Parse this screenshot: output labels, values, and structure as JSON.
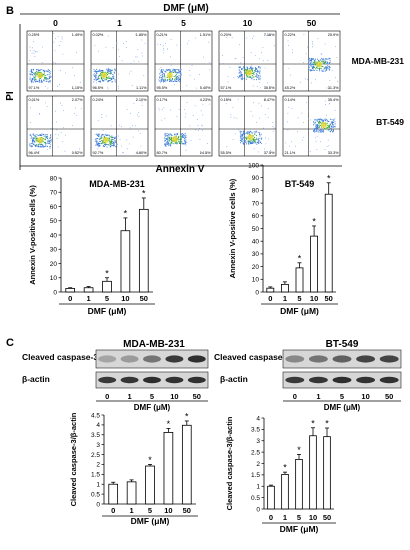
{
  "panel_b": {
    "letter": "B",
    "top_label": "DMF (μM)",
    "concentrations": [
      "0",
      "1",
      "5",
      "10",
      "50"
    ],
    "y_axis_label": "PI",
    "x_axis_label": "Annexin V",
    "rows": [
      {
        "cell_line": "MDA-MB-231",
        "plots": [
          {
            "ul": "0.25%",
            "ur": "1.49%",
            "ll": "97.1%",
            "lr": "1.15%"
          },
          {
            "ul": "0.02%",
            "ur": "1.85%",
            "ll": "96.5%",
            "lr": "1.11%"
          },
          {
            "ul": "0.21%",
            "ur": "1.51%",
            "ll": "95.5%",
            "lr": "5.40%"
          },
          {
            "ul": "0.20%",
            "ur": "7.16%",
            "ll": "57.1%",
            "lr": "35.6%"
          },
          {
            "ul": "0.22%",
            "ur": "25.9%",
            "ll": "43.2%",
            "lr": "31.3%"
          }
        ]
      },
      {
        "cell_line": "BT-549",
        "plots": [
          {
            "ul": "0.01%",
            "ur": "2.07%",
            "ll": "96.4%",
            "lr": "0.52%"
          },
          {
            "ul": "0.24%",
            "ur": "2.10%",
            "ll": "92.7%",
            "lr": "4.90%"
          },
          {
            "ul": "0.17%",
            "ur": "4.23%",
            "ll": "80.7%",
            "lr": "14.5%"
          },
          {
            "ul": "0.15%",
            "ur": "8.47%",
            "ll": "55.5%",
            "lr": "37.5%"
          },
          {
            "ul": "0.14%",
            "ur": "35.4%",
            "ll": "21.1%",
            "lr": "33.3%"
          }
        ]
      }
    ]
  },
  "panel_c": {
    "letter": "C",
    "blot_label_top": "Cleaved caspase-3",
    "blot_label_bottom": "β-actin"
  },
  "chart_data": [
    {
      "type": "bar",
      "title": "MDA-MB-231",
      "xlabel": "DMF (μM)",
      "ylabel": "Annexin V-positive cells (%)",
      "categories": [
        "0",
        "1",
        "5",
        "10",
        "50"
      ],
      "values": [
        2.5,
        3,
        7.5,
        43,
        58
      ],
      "errors": [
        0.5,
        0.8,
        2.5,
        9,
        8
      ],
      "significant": [
        false,
        false,
        true,
        true,
        true
      ],
      "ylim": [
        0,
        80
      ],
      "yticks": [
        0,
        10,
        20,
        30,
        40,
        50,
        60,
        70,
        80
      ]
    },
    {
      "type": "bar",
      "title": "BT-549",
      "xlabel": "DMF (μM)",
      "ylabel": "Annexin V-positive cells (%)",
      "categories": [
        "0",
        "1",
        "5",
        "10",
        "50"
      ],
      "values": [
        3,
        6,
        19,
        44,
        77
      ],
      "errors": [
        1,
        2,
        4,
        8,
        9
      ],
      "significant": [
        false,
        false,
        true,
        true,
        true
      ],
      "ylim": [
        0,
        100
      ],
      "yticks": [
        0,
        10,
        20,
        30,
        40,
        50,
        60,
        70,
        80,
        90,
        100
      ]
    },
    {
      "type": "bar",
      "title": "MDA-MB-231",
      "xlabel": "DMF (μM)",
      "ylabel": "Cleaved caspase-3/β-actin",
      "categories": [
        "0",
        "1",
        "5",
        "10",
        "50"
      ],
      "values": [
        1.0,
        1.12,
        1.92,
        3.62,
        3.98
      ],
      "errors": [
        0.1,
        0.1,
        0.08,
        0.2,
        0.22
      ],
      "significant": [
        false,
        false,
        true,
        true,
        true
      ],
      "ylim": [
        0,
        4.5
      ],
      "yticks": [
        0,
        0.5,
        1,
        1.5,
        2,
        2.5,
        3,
        3.5,
        4,
        4.5
      ]
    },
    {
      "type": "bar",
      "title": "BT-549",
      "xlabel": "DMF (μM)",
      "ylabel": "Cleaved caspase-3/β-actin",
      "categories": [
        "0",
        "1",
        "5",
        "10",
        "50"
      ],
      "values": [
        1.0,
        1.52,
        2.18,
        3.22,
        3.18
      ],
      "errors": [
        0.05,
        0.1,
        0.22,
        0.35,
        0.38
      ],
      "significant": [
        false,
        true,
        true,
        true,
        true
      ],
      "ylim": [
        0,
        4
      ],
      "yticks": [
        0,
        0.5,
        1,
        1.5,
        2,
        2.5,
        3,
        3.5,
        4
      ]
    }
  ]
}
